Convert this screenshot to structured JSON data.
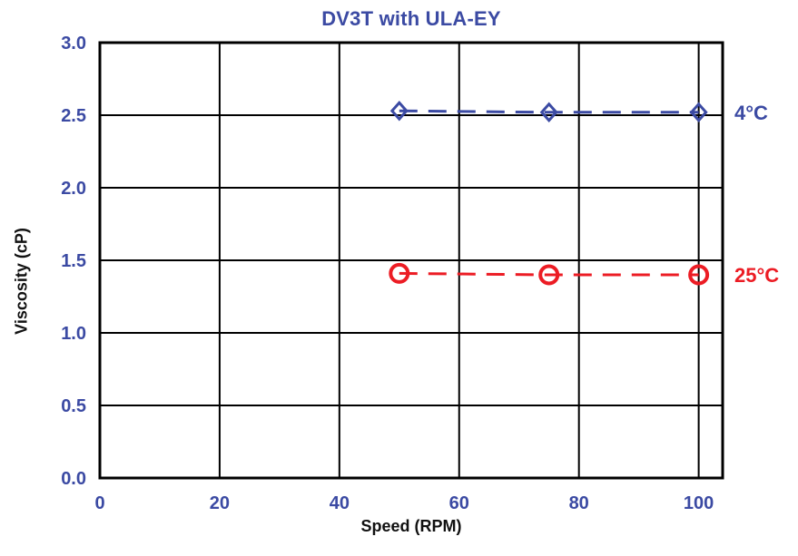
{
  "colors": {
    "title": "#3B4AA3",
    "axis_tick_text": "#3B4AA3",
    "axis_title_text": "#111111",
    "grid": "#000000",
    "series_blue": "#3B4AA3",
    "series_red": "#EC1C24",
    "background": "#FFFFFF"
  },
  "chart_data": {
    "type": "line",
    "title": "DV3T with ULA-EY",
    "xlabel": "Speed (RPM)",
    "ylabel": "Viscosity (cP)",
    "xlim": [
      0,
      104
    ],
    "ylim": [
      0.0,
      3.0
    ],
    "xticks": [
      0,
      20,
      40,
      60,
      80,
      100
    ],
    "xtick_labels": [
      "0",
      "20",
      "40",
      "60",
      "80",
      "100"
    ],
    "yticks": [
      0.0,
      0.5,
      1.0,
      1.5,
      2.0,
      2.5,
      3.0
    ],
    "ytick_labels": [
      "0.0",
      "0.5",
      "1.0",
      "1.5",
      "2.0",
      "2.5",
      "3.0"
    ],
    "grid": true,
    "legend_position": "right-of-last-point",
    "series": [
      {
        "name": "4°C",
        "color": "#3B4AA3",
        "marker": "diamond",
        "line_style": "dashed",
        "x": [
          50,
          75,
          100
        ],
        "y": [
          2.53,
          2.52,
          2.52
        ]
      },
      {
        "name": "25°C",
        "color": "#EC1C24",
        "marker": "circle",
        "line_style": "dashed",
        "x": [
          50,
          75,
          100
        ],
        "y": [
          1.41,
          1.4,
          1.4
        ]
      }
    ]
  }
}
